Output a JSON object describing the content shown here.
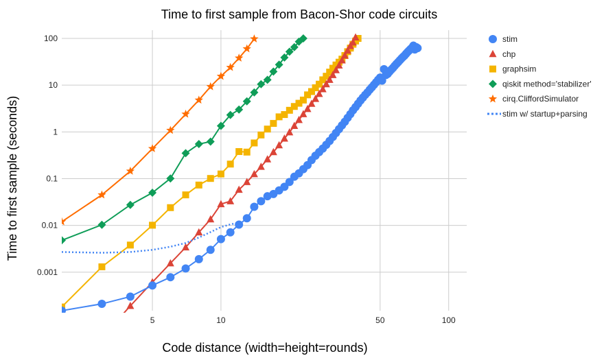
{
  "chart_data": {
    "type": "line",
    "title": "Time to first sample from Bacon-Shor code circuits",
    "xlabel": "Code distance (width=height=rounds)",
    "ylabel": "Time to first sample (seconds)",
    "x_scale": "log",
    "y_scale": "log",
    "xlim": [
      2,
      120
    ],
    "ylim": [
      0.00015,
      100
    ],
    "x_ticks": [
      5,
      10,
      50,
      100
    ],
    "x_tick_labels": [
      "5",
      "10",
      "50",
      "100"
    ],
    "y_ticks": [
      0.001,
      0.01,
      0.1,
      1,
      10,
      100
    ],
    "y_tick_labels": [
      "0.001",
      "0.01",
      "0.1",
      "1",
      "10",
      "100"
    ],
    "grid": true,
    "legend_position": "right",
    "series": [
      {
        "name": "stim",
        "color": "#4285f4",
        "marker": "circle",
        "points": [
          [
            2,
            0.00015
          ],
          [
            3,
            0.00021
          ],
          [
            4,
            0.0003
          ],
          [
            5,
            0.00052
          ],
          [
            6,
            0.00078
          ],
          [
            7,
            0.0012
          ],
          [
            8,
            0.0019
          ],
          [
            9,
            0.003
          ],
          [
            10,
            0.0051
          ],
          [
            11,
            0.0071
          ],
          [
            12,
            0.0104
          ],
          [
            13,
            0.0142
          ],
          [
            14,
            0.025
          ],
          [
            15,
            0.033
          ],
          [
            16,
            0.042
          ],
          [
            17,
            0.047
          ],
          [
            18,
            0.056
          ],
          [
            19,
            0.067
          ],
          [
            20,
            0.085
          ],
          [
            21,
            0.11
          ],
          [
            22,
            0.13
          ],
          [
            23,
            0.16
          ],
          [
            24,
            0.195
          ],
          [
            25,
            0.25
          ],
          [
            26,
            0.31
          ],
          [
            27,
            0.37
          ],
          [
            28,
            0.44
          ],
          [
            29,
            0.53
          ],
          [
            30,
            0.64
          ],
          [
            31,
            0.78
          ],
          [
            32,
            0.95
          ],
          [
            33,
            1.15
          ],
          [
            34,
            1.38
          ],
          [
            35,
            1.65
          ],
          [
            36,
            2.0
          ],
          [
            37,
            2.4
          ],
          [
            38,
            2.9
          ],
          [
            39,
            3.4
          ],
          [
            40,
            4.0
          ],
          [
            41,
            4.7
          ],
          [
            42,
            5.4
          ],
          [
            43,
            6.2
          ],
          [
            44,
            7.0
          ],
          [
            45,
            8.0
          ],
          [
            46,
            9.0
          ],
          [
            47,
            10.2
          ],
          [
            48,
            11.5
          ],
          [
            49,
            13.0
          ],
          [
            50,
            14.5
          ],
          [
            51,
            12.5
          ],
          [
            52,
            22
          ],
          [
            53,
            16.5
          ],
          [
            54,
            17.5
          ],
          [
            55,
            19.5
          ],
          [
            56,
            21.5
          ],
          [
            57,
            23.5
          ],
          [
            58,
            26
          ],
          [
            59,
            28.5
          ],
          [
            60,
            31
          ],
          [
            61,
            34
          ],
          [
            62,
            37
          ],
          [
            63,
            40
          ],
          [
            64,
            43
          ],
          [
            65,
            47
          ],
          [
            66,
            51
          ],
          [
            67,
            55
          ],
          [
            68,
            59
          ],
          [
            69,
            63
          ],
          [
            70,
            70
          ],
          [
            71,
            58
          ],
          [
            72,
            65
          ],
          [
            73,
            62
          ]
        ]
      },
      {
        "name": "chp",
        "color": "#db4437",
        "marker": "triangle",
        "points": [
          [
            3,
            4e-05
          ],
          [
            4,
            0.00019
          ],
          [
            5,
            0.00061
          ],
          [
            6,
            0.00155
          ],
          [
            7,
            0.0034
          ],
          [
            8,
            0.0071
          ],
          [
            9,
            0.0135
          ],
          [
            10,
            0.0285
          ],
          [
            11,
            0.033
          ],
          [
            12,
            0.058
          ],
          [
            13,
            0.085
          ],
          [
            14,
            0.125
          ],
          [
            15,
            0.18
          ],
          [
            16,
            0.26
          ],
          [
            17,
            0.37
          ],
          [
            18,
            0.52
          ],
          [
            19,
            0.72
          ],
          [
            20,
            0.98
          ],
          [
            21,
            1.35
          ],
          [
            22,
            1.8
          ],
          [
            23,
            2.4
          ],
          [
            24,
            3.1
          ],
          [
            25,
            4.0
          ],
          [
            26,
            5.1
          ],
          [
            27,
            6.5
          ],
          [
            28,
            8.2
          ],
          [
            29,
            10.5
          ],
          [
            30,
            13
          ],
          [
            31,
            16.5
          ],
          [
            32,
            21
          ],
          [
            33,
            26.5
          ],
          [
            34,
            34
          ],
          [
            35,
            43
          ],
          [
            36,
            55
          ],
          [
            37,
            69
          ],
          [
            38,
            82
          ],
          [
            39,
            105
          ]
        ]
      },
      {
        "name": "graphsim",
        "color": "#f4b400",
        "marker": "square",
        "points": [
          [
            2,
            0.00018
          ],
          [
            3,
            0.0013
          ],
          [
            4,
            0.0038
          ],
          [
            5,
            0.0101
          ],
          [
            6,
            0.024
          ],
          [
            7,
            0.045
          ],
          [
            8,
            0.073
          ],
          [
            9,
            0.101
          ],
          [
            10,
            0.126
          ],
          [
            11,
            0.205
          ],
          [
            12,
            0.38
          ],
          [
            13,
            0.37
          ],
          [
            14,
            0.58
          ],
          [
            15,
            0.86
          ],
          [
            16,
            1.15
          ],
          [
            17,
            1.52
          ],
          [
            18,
            2.1
          ],
          [
            19,
            2.35
          ],
          [
            20,
            2.9
          ],
          [
            21,
            3.5
          ],
          [
            22,
            4.1
          ],
          [
            23,
            4.8
          ],
          [
            24,
            6.2
          ],
          [
            25,
            7.3
          ],
          [
            26,
            8.8
          ],
          [
            27,
            10.5
          ],
          [
            28,
            13
          ],
          [
            29,
            15.5
          ],
          [
            30,
            19
          ],
          [
            31,
            23
          ],
          [
            32,
            27
          ],
          [
            33,
            31
          ],
          [
            34,
            36
          ],
          [
            35,
            43
          ],
          [
            36,
            52
          ],
          [
            37,
            62
          ],
          [
            38,
            75
          ],
          [
            39,
            88
          ],
          [
            40,
            100
          ]
        ]
      },
      {
        "name": "qiskit method='stabilizer'",
        "color": "#0f9d58",
        "marker": "diamond",
        "points": [
          [
            2,
            0.0048
          ],
          [
            3,
            0.0103
          ],
          [
            4,
            0.0275
          ],
          [
            5,
            0.05
          ],
          [
            6,
            0.101
          ],
          [
            7,
            0.35
          ],
          [
            8,
            0.55
          ],
          [
            9,
            0.62
          ],
          [
            10,
            1.35
          ],
          [
            11,
            2.3
          ],
          [
            12,
            3.0
          ],
          [
            13,
            4.5
          ],
          [
            14,
            7.0
          ],
          [
            15,
            10.5
          ],
          [
            16,
            13
          ],
          [
            17,
            19.5
          ],
          [
            18,
            27.5
          ],
          [
            19,
            39
          ],
          [
            20,
            52
          ],
          [
            21,
            65
          ],
          [
            22,
            85
          ],
          [
            23,
            100
          ]
        ]
      },
      {
        "name": "cirq.CliffordSimulator",
        "color": "#ff6d00",
        "marker": "star",
        "points": [
          [
            2,
            0.012
          ],
          [
            3,
            0.045
          ],
          [
            4,
            0.145
          ],
          [
            5,
            0.44
          ],
          [
            6,
            1.08
          ],
          [
            7,
            2.4
          ],
          [
            8,
            4.8
          ],
          [
            9,
            9.3
          ],
          [
            10,
            15.5
          ],
          [
            11,
            24
          ],
          [
            12,
            38
          ],
          [
            13,
            60
          ],
          [
            14,
            98
          ]
        ]
      },
      {
        "name": "stim w/ startup+parsing",
        "color": "#4285f4",
        "marker": "none",
        "line_style": "dotted",
        "points": [
          [
            2,
            0.0027
          ],
          [
            3,
            0.0026
          ],
          [
            4,
            0.0027
          ],
          [
            5,
            0.003
          ],
          [
            6,
            0.0035
          ],
          [
            7,
            0.0042
          ],
          [
            8,
            0.0055
          ],
          [
            9,
            0.0072
          ],
          [
            10,
            0.0092
          ],
          [
            11,
            0.0105
          ],
          [
            12,
            0.0115
          ]
        ]
      }
    ]
  }
}
